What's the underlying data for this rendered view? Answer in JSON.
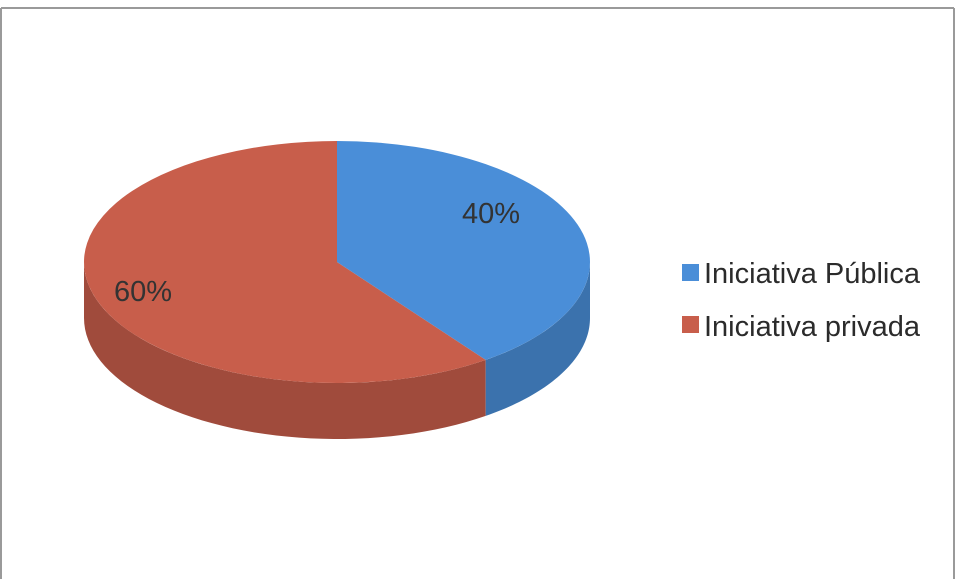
{
  "chart_data": {
    "type": "pie",
    "three_d": true,
    "categories": [
      "Iniciativa Pública",
      "Iniciativa privada"
    ],
    "values": [
      40,
      60
    ],
    "data_labels": [
      "40%",
      "60%"
    ],
    "colors": [
      "#4a8ed8",
      "#c85e4b"
    ],
    "title": "",
    "legend": {
      "placement": "right",
      "entries": [
        "Iniciativa Pública",
        "Iniciativa privada"
      ]
    }
  }
}
